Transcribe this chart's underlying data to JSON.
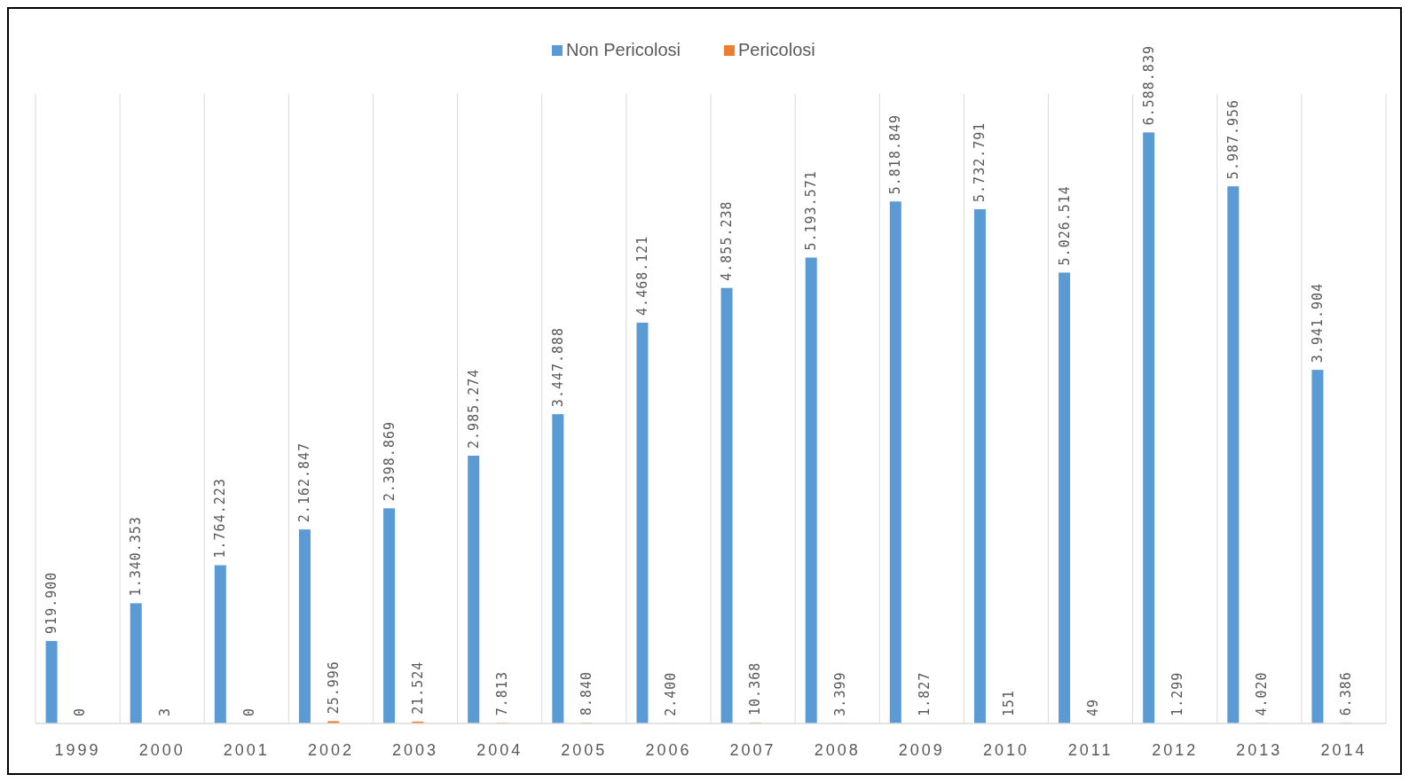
{
  "chart_data": {
    "type": "bar",
    "categories": [
      "1999",
      "2000",
      "2001",
      "2002",
      "2003",
      "2004",
      "2005",
      "2006",
      "2007",
      "2008",
      "2009",
      "2010",
      "2011",
      "2012",
      "2013",
      "2014"
    ],
    "series": [
      {
        "name": "Non Pericolosi",
        "color": "#5b9bd5",
        "values": [
          919900,
          1340353,
          1764223,
          2162847,
          2398869,
          2985274,
          3447888,
          4468121,
          4855238,
          5193571,
          5818849,
          5732791,
          5026514,
          6588839,
          5987956,
          3941904
        ],
        "value_labels": [
          "919.900",
          "1.340.353",
          "1.764.223",
          "2.162.847",
          "2.398.869",
          "2.985.274",
          "3.447.888",
          "4.468.121",
          "4.855.238",
          "5.193.571",
          "5.818.849",
          "5.732.791",
          "5.026.514",
          "6.588.839",
          "5.987.956",
          "3.941.904"
        ]
      },
      {
        "name": "Pericolosi",
        "color": "#ed7d31",
        "values": [
          0,
          3,
          0,
          25996,
          21524,
          7813,
          8840,
          2400,
          10368,
          3399,
          1827,
          151,
          49,
          1299,
          4020,
          6386
        ],
        "value_labels": [
          "0",
          "3",
          "0",
          "25.996",
          "21.524",
          "7.813",
          "8.840",
          "2.400",
          "10.368",
          "3.399",
          "1.827",
          "151",
          "49",
          "1.299",
          "4.020",
          "6.386"
        ]
      }
    ],
    "grid": "x",
    "legend": "top"
  }
}
